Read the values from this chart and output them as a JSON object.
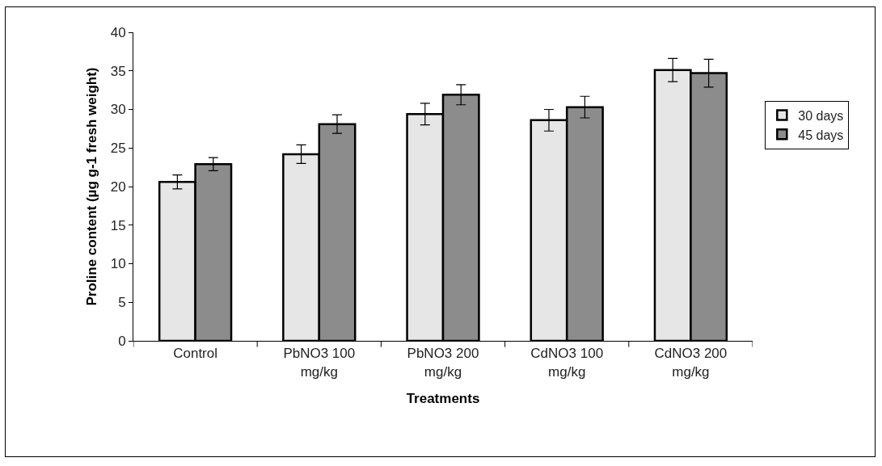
{
  "chart_data": {
    "type": "bar",
    "xlabel": "Treatments",
    "ylabel": "Proline content (µg g-1 fresh weight)",
    "categories": [
      "Control",
      "PbNO3 100 mg/kg",
      "PbNO3 200 mg/kg",
      "CdNO3 100 mg/kg",
      "CdNO3 200 mg/kg"
    ],
    "series": [
      {
        "name": "30 days",
        "color": "#e6e6e6",
        "values": [
          20.6,
          24.2,
          29.4,
          28.6,
          35.1
        ],
        "errors": [
          0.9,
          1.2,
          1.4,
          1.4,
          1.5
        ]
      },
      {
        "name": "45 days",
        "color": "#8c8c8c",
        "values": [
          22.9,
          28.1,
          31.9,
          30.3,
          34.7
        ],
        "errors": [
          0.85,
          1.2,
          1.3,
          1.4,
          1.8
        ]
      }
    ],
    "ylim": [
      0,
      40
    ],
    "yticks": [
      0,
      5,
      10,
      15,
      20,
      25,
      30,
      35,
      40
    ],
    "grid": false,
    "legend": "right"
  }
}
